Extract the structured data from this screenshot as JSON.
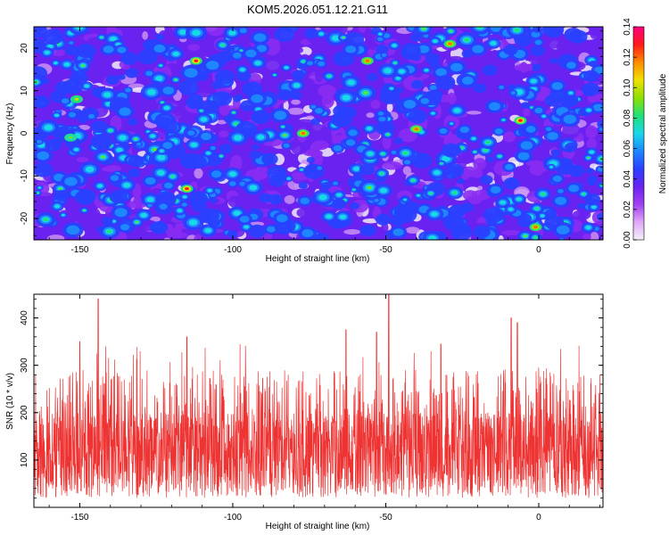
{
  "title": "KOM5.2026.051.12.21.G11",
  "chart_data": [
    {
      "type": "heatmap",
      "title": "KOM5.2026.051.12.21.G11",
      "xlabel": "Height of straight line (km)",
      "ylabel": "Frequency (Hz)",
      "xlim": [
        -165,
        21
      ],
      "ylim": [
        -25,
        25
      ],
      "xticks": [
        -150,
        -100,
        -50,
        0
      ],
      "yticks": [
        -20,
        -10,
        0,
        10,
        20
      ],
      "colorbar": {
        "label": "Normalized spectral amplitude",
        "range": [
          0.0,
          0.14
        ],
        "ticks": [
          0.0,
          0.02,
          0.04,
          0.06,
          0.08,
          0.1,
          0.12,
          0.14
        ],
        "tick_labels": [
          "0.00",
          "0.02",
          "0.04",
          "0.06",
          "0.08",
          "0.10",
          "0.12",
          "0.14"
        ],
        "colormap": [
          "#f4f0f8",
          "#e0a8f8",
          "#a040f0",
          "#6a22f0",
          "#2a40ff",
          "#1e86ff",
          "#18d8e8",
          "#20e078",
          "#8ee000",
          "#f0e000",
          "#ff8c00",
          "#ff1a1a",
          "#ff0080"
        ]
      },
      "peaks": [
        {
          "x": -112,
          "y": 17,
          "value": 0.13
        },
        {
          "x": -56,
          "y": 17,
          "value": 0.12
        },
        {
          "x": -29,
          "y": 21,
          "value": 0.12
        },
        {
          "x": -115,
          "y": -13,
          "value": 0.13
        },
        {
          "x": -77,
          "y": 0,
          "value": 0.12
        },
        {
          "x": -40,
          "y": 1,
          "value": 0.12
        },
        {
          "x": -6,
          "y": 3,
          "value": 0.13
        },
        {
          "x": -1,
          "y": -22,
          "value": 0.12
        },
        {
          "x": -151,
          "y": 8,
          "value": 0.1
        },
        {
          "x": -153,
          "y": -1,
          "value": 0.09
        }
      ]
    },
    {
      "type": "line",
      "xlabel": "Height of straight line (km)",
      "ylabel": "SNR (10 * v/v)",
      "xlim": [
        -165,
        21
      ],
      "ylim": [
        0,
        450
      ],
      "xticks": [
        -150,
        -100,
        -50,
        0
      ],
      "yticks": [
        100,
        200,
        300,
        400
      ],
      "color": "#ee3333",
      "baseline_range": [
        20,
        200
      ],
      "spikes": [
        {
          "x": -144,
          "y": 440
        },
        {
          "x": -49,
          "y": 450
        },
        {
          "x": -9,
          "y": 400
        },
        {
          "x": -7,
          "y": 390
        },
        {
          "x": -53,
          "y": 370
        },
        {
          "x": -115,
          "y": 360
        },
        {
          "x": -63,
          "y": 375
        },
        {
          "x": -150,
          "y": 350
        },
        {
          "x": -32,
          "y": 345
        }
      ]
    }
  ]
}
